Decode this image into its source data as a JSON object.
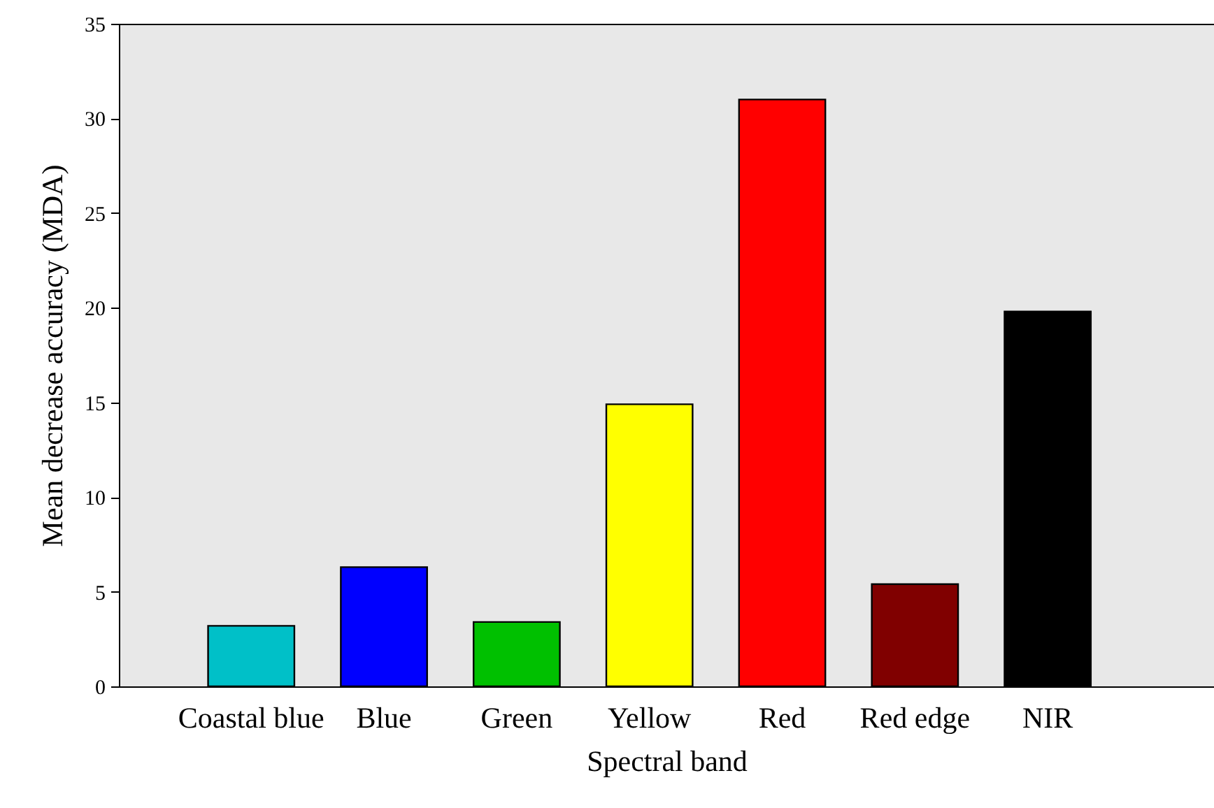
{
  "chart_data": {
    "type": "bar",
    "xlabel": "Spectral band",
    "ylabel": "Mean decrease accuracy (MDA)",
    "categories": [
      "Coastal blue",
      "Blue",
      "Green",
      "Yellow",
      "Red",
      "Red edge",
      "NIR"
    ],
    "values": [
      3.2,
      6.3,
      3.4,
      14.9,
      31.0,
      5.4,
      19.8
    ],
    "colors": [
      "#00c0c8",
      "#0000ff",
      "#00c000",
      "#ffff00",
      "#ff0000",
      "#800000",
      "#000000"
    ],
    "ylim": [
      0,
      35
    ],
    "yticks": [
      0,
      5,
      10,
      15,
      20,
      25,
      30,
      35
    ],
    "grid": false
  }
}
